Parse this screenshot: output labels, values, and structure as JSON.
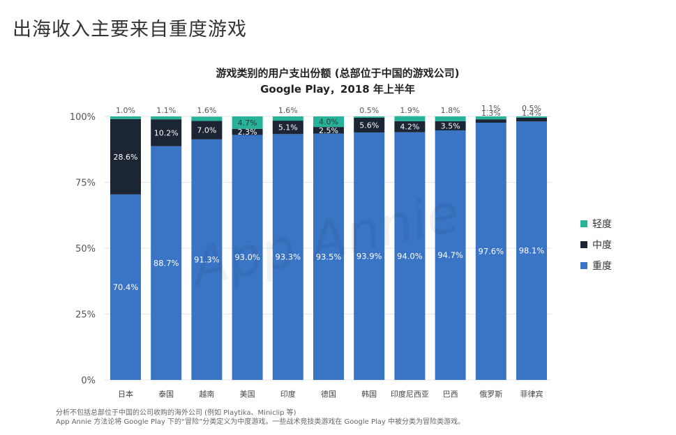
{
  "page": {
    "title": "出海收入主要来自重度游戏"
  },
  "chart_data": {
    "type": "bar",
    "stacked": true,
    "title": "游戏类别的用户支出份额 (总部位于中国的游戏公司)",
    "subtitle": "Google Play，2018 年上半年",
    "categories": [
      "日本",
      "泰国",
      "越南",
      "美国",
      "印度",
      "德国",
      "韩国",
      "印度尼西亚",
      "巴西",
      "俄罗斯",
      "菲律宾"
    ],
    "series": [
      {
        "name": "重度",
        "color": "#3a74c4",
        "values": [
          70.4,
          88.7,
          91.3,
          93.0,
          93.3,
          93.5,
          93.9,
          94.0,
          94.7,
          97.6,
          98.1
        ],
        "labels": [
          "70.4%",
          "88.7%",
          "91.3%",
          "93.0%",
          "93.3%",
          "93.5%",
          "93.9%",
          "94.0%",
          "94.7%",
          "97.6%",
          "98.1%"
        ]
      },
      {
        "name": "中度",
        "color": "#1c2533",
        "values": [
          28.6,
          10.2,
          7.0,
          2.3,
          5.1,
          2.5,
          5.6,
          4.2,
          3.5,
          1.3,
          1.4
        ],
        "labels": [
          "28.6%",
          "10.2%",
          "7.0%",
          "2.3%",
          "5.1%",
          "2.5%",
          "5.6%",
          "4.2%",
          "3.5%",
          "1.3%",
          "1.4%"
        ]
      },
      {
        "name": "轻度",
        "color": "#27b29a",
        "values": [
          1.0,
          1.1,
          1.6,
          4.7,
          1.6,
          4.0,
          0.5,
          1.9,
          1.8,
          1.1,
          0.5
        ],
        "labels": [
          "1.0%",
          "1.1%",
          "1.6%",
          "4.7%",
          "1.6%",
          "4.0%",
          "0.5%",
          "1.9%",
          "1.8%",
          "1.1%",
          "0.5%"
        ]
      }
    ],
    "yticks": [
      "0%",
      "25%",
      "50%",
      "75%",
      "100%"
    ],
    "ylim": [
      0,
      100
    ],
    "legend": "right",
    "legend_order": [
      "轻度",
      "中度",
      "重度"
    ],
    "watermark": "App Annie"
  },
  "footnotes": [
    "分析不包括总部位于中国的公司收购的海外公司 (例如 Playtika、Miniclip 等)",
    "App Annie 方法论将 Google Play 下的“冒险”分类定义为中度游戏。一些战术竞技类游戏在 Google Play 中被分类为冒险类游戏。"
  ]
}
